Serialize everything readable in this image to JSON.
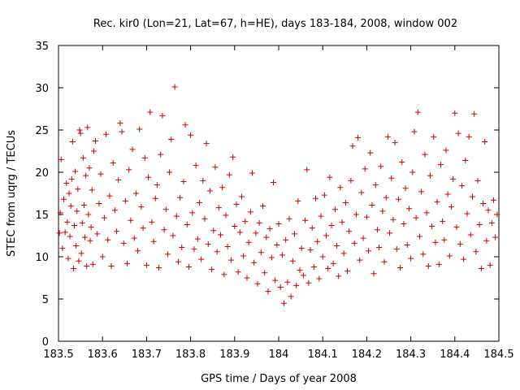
{
  "chart_data": {
    "type": "scatter",
    "title": "Rec. kir0 (Lon=21, Lat=67, h=HE), days 183-184, 2008, window 002",
    "xlabel": "GPS time / Days of year 2008",
    "ylabel": "STEC from uqrg / TECUs",
    "xlim": [
      183.5,
      184.5
    ],
    "ylim": [
      0,
      35
    ],
    "xticks": [
      183.5,
      183.6,
      183.7,
      183.8,
      183.9,
      184,
      184.1,
      184.2,
      184.3,
      184.4,
      184.5
    ],
    "xtick_labels": [
      "183.5",
      "183.6",
      "183.7",
      "183.8",
      "183.9",
      "184",
      "184.1",
      "184.2",
      "184.3",
      "184.4",
      "184.5"
    ],
    "yticks": [
      0,
      5,
      10,
      15,
      20,
      25,
      30,
      35
    ],
    "ytick_labels": [
      "0",
      "5",
      "10",
      "15",
      "20",
      "25",
      "30",
      "35"
    ],
    "marker": "plus",
    "grid": false,
    "series": [
      {
        "name": "STEC",
        "color": "#cc0000",
        "points": [
          [
            183.502,
            12.8
          ],
          [
            183.504,
            15.2
          ],
          [
            183.506,
            21.5
          ],
          [
            183.509,
            11.0
          ],
          [
            183.512,
            16.8
          ],
          [
            183.515,
            12.9
          ],
          [
            183.518,
            18.7
          ],
          [
            183.52,
            14.1
          ],
          [
            183.522,
            9.8
          ],
          [
            183.524,
            17.5
          ],
          [
            183.526,
            12.4
          ],
          [
            183.528,
            16.0
          ],
          [
            183.53,
            19.2
          ],
          [
            183.532,
            23.6
          ],
          [
            183.534,
            8.6
          ],
          [
            183.536,
            13.7
          ],
          [
            183.538,
            20.1
          ],
          [
            183.54,
            11.3
          ],
          [
            183.542,
            15.4
          ],
          [
            183.544,
            18.0
          ],
          [
            183.546,
            9.5
          ],
          [
            183.548,
            25.0
          ],
          [
            183.55,
            24.6
          ],
          [
            183.552,
            10.4
          ],
          [
            183.554,
            14.0
          ],
          [
            183.556,
            21.7
          ],
          [
            183.558,
            16.1
          ],
          [
            183.56,
            12.3
          ],
          [
            183.562,
            19.6
          ],
          [
            183.564,
            8.9
          ],
          [
            183.566,
            25.3
          ],
          [
            183.568,
            15.0
          ],
          [
            183.57,
            20.5
          ],
          [
            183.572,
            11.9
          ],
          [
            183.574,
            13.5
          ],
          [
            183.576,
            17.9
          ],
          [
            183.578,
            9.1
          ],
          [
            183.58,
            22.5
          ],
          [
            183.584,
            23.7
          ],
          [
            183.588,
            12.7
          ],
          [
            183.592,
            16.3
          ],
          [
            183.596,
            19.8
          ],
          [
            183.6,
            10.0
          ],
          [
            183.604,
            14.6
          ],
          [
            183.608,
            24.5
          ],
          [
            183.612,
            12.0
          ],
          [
            183.616,
            17.2
          ],
          [
            183.62,
            8.9
          ],
          [
            183.624,
            21.1
          ],
          [
            183.628,
            15.5
          ],
          [
            183.632,
            13.0
          ],
          [
            183.636,
            19.1
          ],
          [
            183.64,
            25.8
          ],
          [
            183.644,
            24.8
          ],
          [
            183.648,
            11.6
          ],
          [
            183.652,
            16.6
          ],
          [
            183.656,
            9.2
          ],
          [
            183.66,
            20.3
          ],
          [
            183.664,
            14.3
          ],
          [
            183.668,
            22.7
          ],
          [
            183.672,
            12.2
          ],
          [
            183.676,
            17.5
          ],
          [
            183.68,
            10.7
          ],
          [
            183.684,
            25.1
          ],
          [
            183.688,
            15.9
          ],
          [
            183.692,
            13.4
          ],
          [
            183.696,
            21.7
          ],
          [
            183.7,
            9.0
          ],
          [
            183.704,
            19.4
          ],
          [
            183.708,
            27.1
          ],
          [
            183.712,
            14.1
          ],
          [
            183.716,
            11.8
          ],
          [
            183.72,
            16.9
          ],
          [
            183.724,
            18.5
          ],
          [
            183.728,
            8.7
          ],
          [
            183.732,
            22.1
          ],
          [
            183.736,
            26.7
          ],
          [
            183.74,
            13.2
          ],
          [
            183.744,
            15.6
          ],
          [
            183.748,
            10.3
          ],
          [
            183.752,
            20.0
          ],
          [
            183.756,
            23.9
          ],
          [
            183.76,
            12.5
          ],
          [
            183.764,
            30.1
          ],
          [
            183.768,
            14.8
          ],
          [
            183.772,
            9.4
          ],
          [
            183.776,
            17.0
          ],
          [
            183.78,
            11.1
          ],
          [
            183.784,
            18.9
          ],
          [
            183.788,
            25.6
          ],
          [
            183.792,
            13.8
          ],
          [
            183.796,
            8.8
          ],
          [
            183.8,
            24.4
          ],
          [
            183.804,
            15.2
          ],
          [
            183.808,
            10.9
          ],
          [
            183.812,
            20.8
          ],
          [
            183.816,
            12.1
          ],
          [
            183.82,
            16.4
          ],
          [
            183.824,
            9.7
          ],
          [
            183.828,
            19.0
          ],
          [
            183.832,
            14.5
          ],
          [
            183.836,
            23.4
          ],
          [
            183.84,
            11.5
          ],
          [
            183.844,
            17.8
          ],
          [
            183.848,
            8.5
          ],
          [
            183.852,
            13.1
          ],
          [
            183.856,
            20.6
          ],
          [
            183.86,
            10.6
          ],
          [
            183.864,
            15.8
          ],
          [
            183.868,
            12.6
          ],
          [
            183.872,
            18.2
          ],
          [
            183.876,
            7.9
          ],
          [
            183.88,
            14.9
          ],
          [
            183.884,
            11.2
          ],
          [
            183.888,
            19.7
          ],
          [
            183.892,
            9.6
          ],
          [
            183.896,
            21.8
          ],
          [
            183.9,
            13.6
          ],
          [
            183.904,
            16.2
          ],
          [
            183.908,
            8.2
          ],
          [
            183.912,
            12.9
          ],
          [
            183.916,
            17.1
          ],
          [
            183.92,
            10.1
          ],
          [
            183.924,
            14.2
          ],
          [
            183.928,
            7.5
          ],
          [
            183.932,
            11.7
          ],
          [
            183.936,
            15.3
          ],
          [
            183.94,
            19.9
          ],
          [
            183.944,
            9.3
          ],
          [
            183.948,
            12.8
          ],
          [
            183.952,
            6.8
          ],
          [
            183.956,
            14.0
          ],
          [
            183.96,
            10.5
          ],
          [
            183.964,
            16.0
          ],
          [
            183.968,
            8.1
          ],
          [
            183.972,
            12.3
          ],
          [
            183.976,
            5.9
          ],
          [
            183.98,
            13.3
          ],
          [
            183.984,
            9.9
          ],
          [
            183.988,
            18.8
          ],
          [
            183.992,
            7.2
          ],
          [
            183.996,
            11.4
          ],
          [
            184.0,
            13.9
          ],
          [
            184.004,
            6.4
          ],
          [
            184.008,
            10.2
          ],
          [
            184.012,
            4.5
          ],
          [
            184.016,
            12.0
          ],
          [
            184.02,
            7.0
          ],
          [
            184.024,
            14.5
          ],
          [
            184.028,
            5.3
          ],
          [
            184.032,
            9.5
          ],
          [
            184.036,
            12.7
          ],
          [
            184.04,
            6.6
          ],
          [
            184.044,
            16.6
          ],
          [
            184.048,
            8.4
          ],
          [
            184.052,
            11.0
          ],
          [
            184.056,
            7.8
          ],
          [
            184.06,
            14.3
          ],
          [
            184.064,
            20.3
          ],
          [
            184.068,
            6.9
          ],
          [
            184.072,
            10.8
          ],
          [
            184.076,
            13.4
          ],
          [
            184.08,
            8.8
          ],
          [
            184.084,
            16.9
          ],
          [
            184.088,
            11.8
          ],
          [
            184.092,
            7.4
          ],
          [
            184.096,
            14.8
          ],
          [
            184.1,
            10.0
          ],
          [
            184.104,
            17.3
          ],
          [
            184.108,
            12.5
          ],
          [
            184.112,
            8.6
          ],
          [
            184.116,
            19.4
          ],
          [
            184.12,
            13.7
          ],
          [
            184.124,
            9.2
          ],
          [
            184.128,
            15.6
          ],
          [
            184.132,
            11.3
          ],
          [
            184.136,
            7.7
          ],
          [
            184.14,
            18.2
          ],
          [
            184.144,
            14.1
          ],
          [
            184.148,
            10.4
          ],
          [
            184.152,
            16.4
          ],
          [
            184.156,
            8.3
          ],
          [
            184.16,
            13.0
          ],
          [
            184.164,
            19.0
          ],
          [
            184.168,
            23.1
          ],
          [
            184.172,
            11.6
          ],
          [
            184.176,
            15.0
          ],
          [
            184.18,
            24.1
          ],
          [
            184.184,
            9.6
          ],
          [
            184.188,
            17.6
          ],
          [
            184.192,
            12.2
          ],
          [
            184.196,
            20.4
          ],
          [
            184.2,
            14.7
          ],
          [
            184.204,
            10.7
          ],
          [
            184.208,
            22.3
          ],
          [
            184.212,
            16.1
          ],
          [
            184.216,
            8.0
          ],
          [
            184.22,
            18.5
          ],
          [
            184.224,
            13.2
          ],
          [
            184.228,
            11.1
          ],
          [
            184.232,
            20.7
          ],
          [
            184.236,
            15.4
          ],
          [
            184.24,
            9.4
          ],
          [
            184.244,
            17.0
          ],
          [
            184.248,
            24.2
          ],
          [
            184.252,
            12.8
          ],
          [
            184.256,
            19.3
          ],
          [
            184.26,
            14.4
          ],
          [
            184.264,
            23.5
          ],
          [
            184.268,
            10.9
          ],
          [
            184.272,
            16.8
          ],
          [
            184.276,
            8.7
          ],
          [
            184.28,
            21.2
          ],
          [
            184.284,
            13.9
          ],
          [
            184.288,
            18.1
          ],
          [
            184.292,
            11.4
          ],
          [
            184.296,
            15.7
          ],
          [
            184.3,
            9.8
          ],
          [
            184.304,
            20.0
          ],
          [
            184.308,
            24.8
          ],
          [
            184.312,
            14.6
          ],
          [
            184.316,
            27.1
          ],
          [
            184.32,
            12.4
          ],
          [
            184.324,
            17.7
          ],
          [
            184.328,
            10.3
          ],
          [
            184.332,
            22.1
          ],
          [
            184.336,
            15.2
          ],
          [
            184.34,
            8.9
          ],
          [
            184.344,
            19.6
          ],
          [
            184.348,
            13.6
          ],
          [
            184.352,
            24.2
          ],
          [
            184.356,
            11.7
          ],
          [
            184.36,
            16.5
          ],
          [
            184.364,
            9.1
          ],
          [
            184.368,
            20.9
          ],
          [
            184.372,
            14.2
          ],
          [
            184.376,
            12.0
          ],
          [
            184.38,
            22.6
          ],
          [
            184.384,
            17.4
          ],
          [
            184.388,
            10.1
          ],
          [
            184.392,
            15.9
          ],
          [
            184.396,
            19.2
          ],
          [
            184.4,
            27.0
          ],
          [
            184.404,
            13.5
          ],
          [
            184.408,
            24.6
          ],
          [
            184.412,
            11.5
          ],
          [
            184.416,
            18.4
          ],
          [
            184.42,
            9.7
          ],
          [
            184.424,
            21.4
          ],
          [
            184.428,
            15.1
          ],
          [
            184.432,
            24.2
          ],
          [
            184.436,
            12.6
          ],
          [
            184.44,
            17.1
          ],
          [
            184.444,
            26.9
          ],
          [
            184.448,
            10.6
          ],
          [
            184.452,
            19.0
          ],
          [
            184.456,
            13.8
          ],
          [
            184.46,
            8.6
          ],
          [
            184.464,
            16.3
          ],
          [
            184.468,
            23.6
          ],
          [
            184.472,
            11.9
          ],
          [
            184.476,
            15.5
          ],
          [
            184.48,
            9.0
          ],
          [
            184.484,
            14.0
          ],
          [
            184.488,
            16.7
          ],
          [
            184.492,
            12.3
          ],
          [
            184.496,
            15.0
          ]
        ]
      }
    ]
  }
}
